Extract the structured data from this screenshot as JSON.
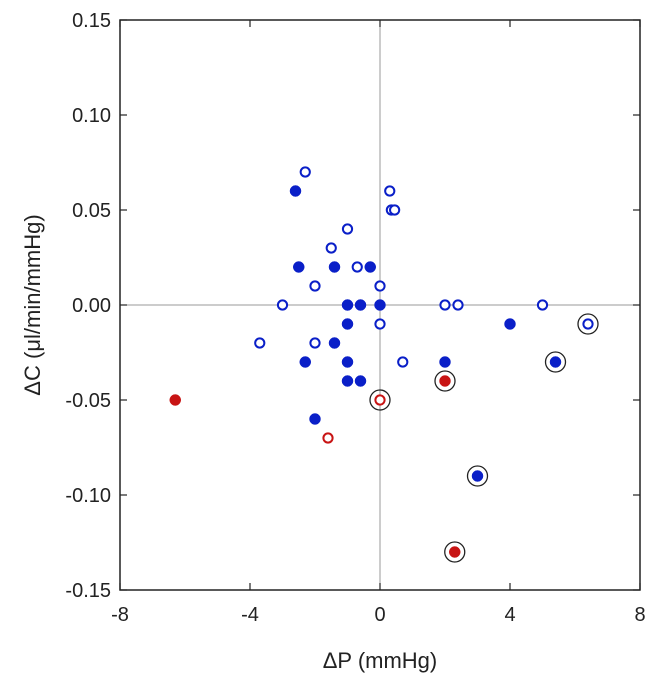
{
  "chart_data": {
    "type": "scatter",
    "xlabel": "ΔP (mmHg)",
    "ylabel": "ΔC (μl/min/mmHg)",
    "xlim": [
      -8,
      8
    ],
    "ylim": [
      -0.15,
      0.15
    ],
    "x_ticks": [
      "-8",
      "-4",
      "0",
      "4",
      "8"
    ],
    "y_ticks": [
      "0.15",
      "0.10",
      "0.05",
      "0.00",
      "-0.05",
      "-0.10",
      "-0.15"
    ],
    "x_tick_values": [
      -8,
      -4,
      0,
      4,
      8
    ],
    "y_tick_values": [
      0.15,
      0.1,
      0.05,
      0.0,
      -0.05,
      -0.1,
      -0.15
    ],
    "zero_lines": true,
    "grid": false,
    "legend": "none",
    "colors": {
      "blue": "#0a1fc8",
      "red": "#c81414",
      "axis": "#222222",
      "zero_line": "#9a9a9a",
      "ring": "#222222"
    },
    "series": [
      {
        "color": "blue",
        "marker": "filled",
        "points": [
          {
            "x": -2.6,
            "y": 0.06
          },
          {
            "x": -2.5,
            "y": 0.02
          },
          {
            "x": -1.4,
            "y": 0.02
          },
          {
            "x": -0.3,
            "y": 0.02
          },
          {
            "x": -1.0,
            "y": 0.0
          },
          {
            "x": -0.6,
            "y": 0.0
          },
          {
            "x": 0.0,
            "y": 0.0
          },
          {
            "x": -1.0,
            "y": -0.01
          },
          {
            "x": -1.4,
            "y": -0.02
          },
          {
            "x": -2.3,
            "y": -0.03
          },
          {
            "x": -1.0,
            "y": -0.03
          },
          {
            "x": -1.0,
            "y": -0.04
          },
          {
            "x": -0.6,
            "y": -0.04
          },
          {
            "x": 2.0,
            "y": -0.03
          },
          {
            "x": 4.0,
            "y": -0.01
          },
          {
            "x": -2.0,
            "y": -0.06
          },
          {
            "x": 5.4,
            "y": -0.03,
            "ringed": true
          },
          {
            "x": 3.0,
            "y": -0.09,
            "ringed": true
          }
        ]
      },
      {
        "color": "blue",
        "marker": "open",
        "points": [
          {
            "x": -2.3,
            "y": 0.07
          },
          {
            "x": 0.3,
            "y": 0.06
          },
          {
            "x": 0.35,
            "y": 0.05
          },
          {
            "x": 0.45,
            "y": 0.05
          },
          {
            "x": -1.0,
            "y": 0.04
          },
          {
            "x": -1.5,
            "y": 0.03
          },
          {
            "x": -0.7,
            "y": 0.02
          },
          {
            "x": -2.0,
            "y": 0.01
          },
          {
            "x": 0.0,
            "y": 0.01
          },
          {
            "x": -3.0,
            "y": 0.0
          },
          {
            "x": 2.0,
            "y": 0.0
          },
          {
            "x": 2.4,
            "y": 0.0
          },
          {
            "x": 5.0,
            "y": 0.0
          },
          {
            "x": 0.0,
            "y": -0.01
          },
          {
            "x": -3.7,
            "y": -0.02
          },
          {
            "x": -2.0,
            "y": -0.02
          },
          {
            "x": 0.7,
            "y": -0.03
          },
          {
            "x": 6.4,
            "y": -0.01,
            "ringed": true
          }
        ]
      },
      {
        "color": "red",
        "marker": "filled",
        "points": [
          {
            "x": -6.3,
            "y": -0.05
          },
          {
            "x": 2.0,
            "y": -0.04,
            "ringed": true
          },
          {
            "x": 2.3,
            "y": -0.13,
            "ringed": true
          }
        ]
      },
      {
        "color": "red",
        "marker": "open",
        "points": [
          {
            "x": -1.6,
            "y": -0.07
          },
          {
            "x": 0.0,
            "y": -0.05,
            "ringed": true
          }
        ]
      }
    ]
  }
}
